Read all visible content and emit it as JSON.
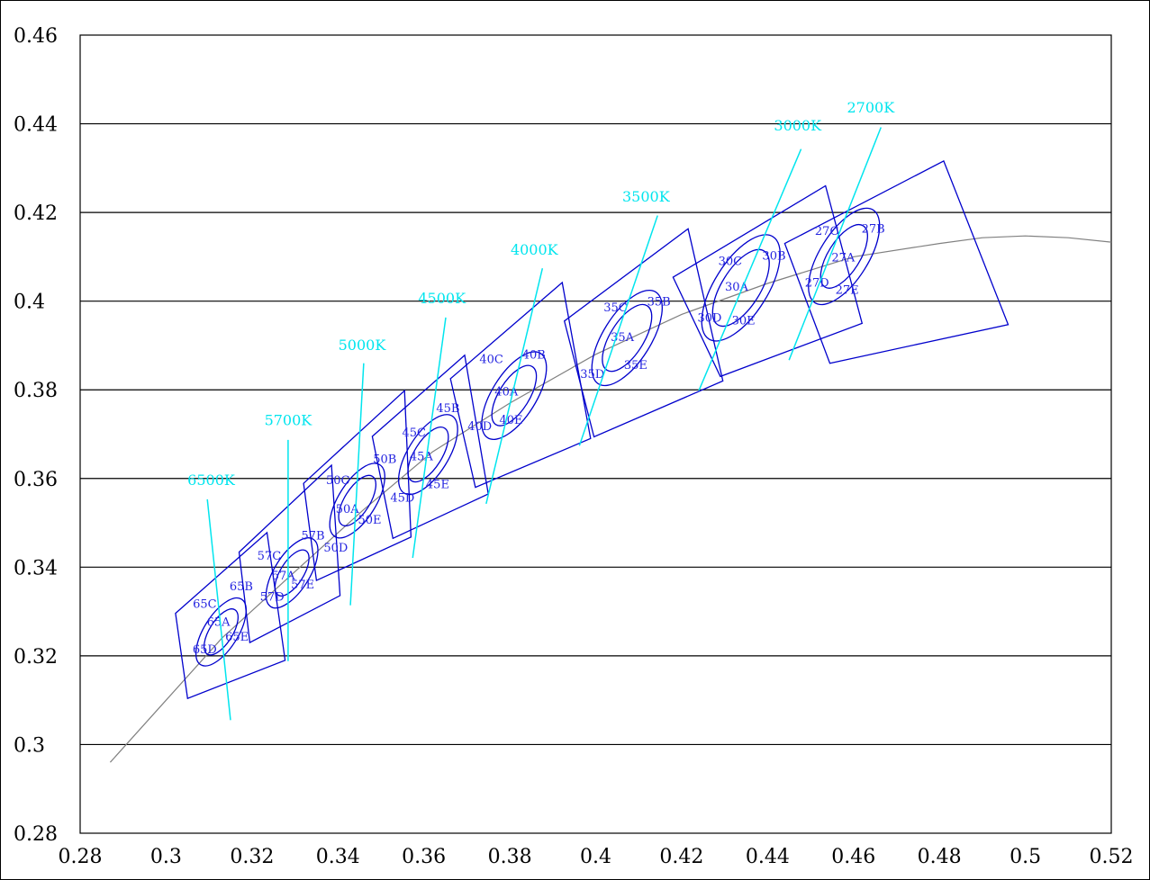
{
  "chart_data": {
    "type": "scatter",
    "title": "",
    "xlabel": "",
    "ylabel": "",
    "xlim": [
      0.28,
      0.52
    ],
    "ylim": [
      0.28,
      0.46
    ],
    "x_ticks": [
      "0.28",
      "0.3",
      "0.32",
      "0.34",
      "0.36",
      "0.38",
      "0.4",
      "0.42",
      "0.44",
      "0.46",
      "0.48",
      "0.5",
      "0.52"
    ],
    "y_ticks": [
      "0.28",
      "0.3",
      "0.32",
      "0.34",
      "0.36",
      "0.38",
      "0.4",
      "0.42",
      "0.44",
      "0.46"
    ],
    "grid": "horizontal",
    "colors": {
      "blackbody": "#808080",
      "bins": "#0000cc",
      "isotherm": "#00e5ee",
      "grid": "#000000"
    },
    "blackbody_locus": [
      [
        0.287,
        0.296
      ],
      [
        0.3,
        0.31
      ],
      [
        0.313,
        0.324
      ],
      [
        0.33,
        0.339
      ],
      [
        0.346,
        0.353
      ],
      [
        0.362,
        0.366
      ],
      [
        0.38,
        0.377
      ],
      [
        0.4,
        0.388
      ],
      [
        0.42,
        0.397
      ],
      [
        0.44,
        0.404
      ],
      [
        0.46,
        0.41
      ],
      [
        0.48,
        0.413
      ],
      [
        0.49,
        0.4143
      ],
      [
        0.5,
        0.4147
      ],
      [
        0.51,
        0.4143
      ],
      [
        0.52,
        0.4133
      ]
    ],
    "isotherms": [
      {
        "label": "6500K",
        "line": [
          [
            0.3096,
            0.3553
          ],
          [
            0.315,
            0.3055
          ]
        ],
        "label_at": [
          0.3105,
          0.3585
        ]
      },
      {
        "label": "5700K",
        "line": [
          [
            0.3284,
            0.3687
          ],
          [
            0.3284,
            0.3188
          ]
        ],
        "label_at": [
          0.3284,
          0.372
        ]
      },
      {
        "label": "5000K",
        "line": [
          [
            0.346,
            0.386
          ],
          [
            0.3429,
            0.3314
          ]
        ],
        "label_at": [
          0.3456,
          0.389
        ]
      },
      {
        "label": "4500K",
        "line": [
          [
            0.3651,
            0.3963
          ],
          [
            0.3574,
            0.3421
          ]
        ],
        "label_at": [
          0.3642,
          0.3995
        ]
      },
      {
        "label": "4000K",
        "line": [
          [
            0.3876,
            0.4074
          ],
          [
            0.3745,
            0.3543
          ]
        ],
        "label_at": [
          0.3857,
          0.4105
        ]
      },
      {
        "label": "3500K",
        "line": [
          [
            0.4144,
            0.4193
          ],
          [
            0.3962,
            0.3674
          ]
        ],
        "label_at": [
          0.4117,
          0.4225
        ]
      },
      {
        "label": "3000K",
        "line": [
          [
            0.4478,
            0.4343
          ],
          [
            0.424,
            0.3798
          ]
        ],
        "label_at": [
          0.447,
          0.4385
        ]
      },
      {
        "label": "2700K",
        "line": [
          [
            0.4664,
            0.4392
          ],
          [
            0.445,
            0.3867
          ]
        ],
        "label_at": [
          0.464,
          0.4425
        ]
      }
    ],
    "bins": [
      {
        "cct": "6500K",
        "center": [
          0.3128,
          0.3254
        ],
        "radii": [
          0.0042,
          0.0062
        ],
        "tilt": -58,
        "quad": [
          [
            0.3022,
            0.3296
          ],
          [
            0.3235,
            0.3478
          ],
          [
            0.3277,
            0.319
          ],
          [
            0.305,
            0.3104
          ]
        ],
        "labels": [
          {
            "text": "65A",
            "at": [
              0.3122,
              0.3278
            ]
          },
          {
            "text": "65B",
            "at": [
              0.3175,
              0.3358
            ]
          },
          {
            "text": "65C",
            "at": [
              0.309,
              0.3318
            ]
          },
          {
            "text": "65D",
            "at": [
              0.309,
              0.3216
            ]
          },
          {
            "text": "65E",
            "at": [
              0.3165,
              0.3244
            ]
          }
        ]
      },
      {
        "cct": "5700K",
        "center": [
          0.3293,
          0.3387
        ],
        "radii": [
          0.0042,
          0.0064
        ],
        "tilt": -58,
        "quad": [
          [
            0.317,
            0.3434
          ],
          [
            0.3385,
            0.363
          ],
          [
            0.3405,
            0.3336
          ],
          [
            0.3195,
            0.323
          ]
        ],
        "labels": [
          {
            "text": "57A",
            "at": [
              0.3273,
              0.3382
            ]
          },
          {
            "text": "57B",
            "at": [
              0.3342,
              0.3473
            ]
          },
          {
            "text": "57C",
            "at": [
              0.324,
              0.3427
            ]
          },
          {
            "text": "57D",
            "at": [
              0.3247,
              0.3335
            ]
          },
          {
            "text": "57E",
            "at": [
              0.3318,
              0.3362
            ]
          }
        ]
      },
      {
        "cct": "5000K",
        "center": [
          0.3445,
          0.355
        ],
        "radii": [
          0.0046,
          0.0068
        ],
        "tilt": -58,
        "quad": [
          [
            0.332,
            0.3589
          ],
          [
            0.3555,
            0.3798
          ],
          [
            0.357,
            0.3468
          ],
          [
            0.335,
            0.337
          ]
        ],
        "labels": [
          {
            "text": "50A",
            "at": [
              0.3422,
              0.3533
            ]
          },
          {
            "text": "50B",
            "at": [
              0.3509,
              0.3645
            ]
          },
          {
            "text": "50C",
            "at": [
              0.34,
              0.3598
            ]
          },
          {
            "text": "50D",
            "at": [
              0.3395,
              0.3445
            ]
          },
          {
            "text": "50E",
            "at": [
              0.3474,
              0.3508
            ]
          }
        ]
      },
      {
        "cct": "4500K",
        "center": [
          0.361,
          0.3654
        ],
        "radii": [
          0.005,
          0.0073
        ],
        "tilt": -58,
        "quad": [
          [
            0.348,
            0.3695
          ],
          [
            0.3695,
            0.3878
          ],
          [
            0.375,
            0.3565
          ],
          [
            0.3528,
            0.3465
          ]
        ],
        "labels": [
          {
            "text": "45A",
            "at": [
              0.3594,
              0.3651
            ]
          },
          {
            "text": "45B",
            "at": [
              0.3656,
              0.376
            ]
          },
          {
            "text": "45C",
            "at": [
              0.3577,
              0.3705
            ]
          },
          {
            "text": "45D",
            "at": [
              0.355,
              0.3558
            ]
          },
          {
            "text": "45E",
            "at": [
              0.3632,
              0.3588
            ]
          }
        ]
      },
      {
        "cct": "4000K",
        "center": [
          0.381,
          0.3787
        ],
        "radii": [
          0.0055,
          0.008
        ],
        "tilt": -58,
        "quad": [
          [
            0.3662,
            0.3825
          ],
          [
            0.3922,
            0.4042
          ],
          [
            0.3988,
            0.369
          ],
          [
            0.372,
            0.358
          ]
        ],
        "labels": [
          {
            "text": "40A",
            "at": [
              0.3792,
              0.3797
            ]
          },
          {
            "text": "40B",
            "at": [
              0.3856,
              0.3881
            ]
          },
          {
            "text": "40C",
            "at": [
              0.3757,
              0.387
            ]
          },
          {
            "text": "40D",
            "at": [
              0.373,
              0.3719
            ]
          },
          {
            "text": "40E",
            "at": [
              0.3803,
              0.3733
            ]
          }
        ]
      },
      {
        "cct": "3500K",
        "center": [
          0.4073,
          0.3917
        ],
        "radii": [
          0.0061,
          0.0087
        ],
        "tilt": -58,
        "quad": [
          [
            0.3927,
            0.3955
          ],
          [
            0.4215,
            0.4163
          ],
          [
            0.4296,
            0.382
          ],
          [
            0.3996,
            0.3694
          ]
        ],
        "labels": [
          {
            "text": "35A",
            "at": [
              0.4062,
              0.392
            ]
          },
          {
            "text": "35B",
            "at": [
              0.4147,
              0.4
            ]
          },
          {
            "text": "35C",
            "at": [
              0.4046,
              0.3987
            ]
          },
          {
            "text": "35D",
            "at": [
              0.3992,
              0.3837
            ]
          },
          {
            "text": "35E",
            "at": [
              0.4093,
              0.3857
            ]
          }
        ]
      },
      {
        "cct": "3000K",
        "center": [
          0.4338,
          0.403
        ],
        "radii": [
          0.007,
          0.0097
        ],
        "tilt": -58,
        "quad": [
          [
            0.418,
            0.4054
          ],
          [
            0.4535,
            0.426
          ],
          [
            0.462,
            0.395
          ],
          [
            0.429,
            0.383
          ]
        ],
        "labels": [
          {
            "text": "30A",
            "at": [
              0.4328,
              0.4034
            ]
          },
          {
            "text": "30B",
            "at": [
              0.4415,
              0.4104
            ]
          },
          {
            "text": "30C",
            "at": [
              0.4313,
              0.4092
            ]
          },
          {
            "text": "30D",
            "at": [
              0.4265,
              0.3964
            ]
          },
          {
            "text": "30E",
            "at": [
              0.4344,
              0.3958
            ]
          }
        ]
      },
      {
        "cct": "2700K",
        "center": [
          0.4578,
          0.4101
        ],
        "radii": [
          0.0058,
          0.0088
        ],
        "tilt": -58,
        "quad": [
          [
            0.444,
            0.413
          ],
          [
            0.481,
            0.4316
          ],
          [
            0.496,
            0.3947
          ],
          [
            0.4545,
            0.386
          ]
        ],
        "labels": [
          {
            "text": "27A",
            "at": [
              0.4576,
              0.41
            ]
          },
          {
            "text": "27B",
            "at": [
              0.4646,
              0.4165
            ]
          },
          {
            "text": "27C",
            "at": [
              0.4538,
              0.416
            ]
          },
          {
            "text": "27D",
            "at": [
              0.4515,
              0.4043
            ]
          },
          {
            "text": "27E",
            "at": [
              0.4585,
              0.4027
            ]
          }
        ]
      }
    ]
  }
}
